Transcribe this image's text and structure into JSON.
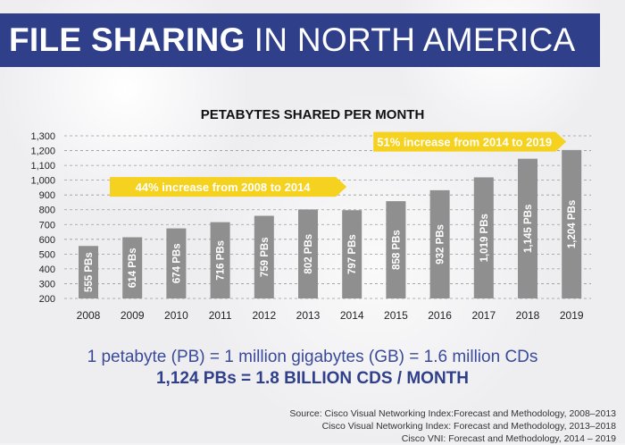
{
  "header": {
    "title_bold": "FILE SHARING",
    "title_light": "IN NORTH AMERICA"
  },
  "colors": {
    "banner": "#2f3f89",
    "bar": "#8f8f8f",
    "callout": "#f5d21f",
    "note_text": "#3a4a9a"
  },
  "chart_data": {
    "type": "bar",
    "title": "PETABYTES SHARED PER MONTH",
    "xlabel": "",
    "ylabel": "",
    "categories": [
      "2008",
      "2009",
      "2010",
      "2011",
      "2012",
      "2013",
      "2014",
      "2015",
      "2016",
      "2017",
      "2018",
      "2019"
    ],
    "values": [
      555,
      614,
      674,
      716,
      759,
      802,
      797,
      858,
      932,
      1019,
      1145,
      1204
    ],
    "data_labels": [
      "555 PBs",
      "614 PBs",
      "674 PBs",
      "716 PBs",
      "759 PBs",
      "802 PBs",
      "797 PBs",
      "858 PBs",
      "932 PBs",
      "1,019 PBs",
      "1,145 PBs",
      "1,204 PBs"
    ],
    "yticks": [
      200,
      300,
      400,
      500,
      600,
      700,
      800,
      900,
      1000,
      1100,
      1200,
      1300
    ],
    "ytick_labels": [
      "200",
      "300",
      "400",
      "500",
      "600",
      "700",
      "800",
      "900",
      "1,000",
      "1,100",
      "1,200",
      "1,300"
    ],
    "ylim": [
      200,
      1300
    ],
    "grid": true,
    "annotations": [
      {
        "text": "44% increase from 2008 to 2014",
        "from": "2008",
        "to": "2014",
        "y": 955
      },
      {
        "text": "51% increase from 2014 to 2019",
        "from": "2014",
        "to": "2019",
        "y": 1260
      }
    ]
  },
  "notes": {
    "line1": "1 petabyte (PB) = 1 million gigabytes (GB) = 1.6 million CDs",
    "line2": "1,124 PBs = 1.8 BILLION CDS / MONTH"
  },
  "sources": [
    "Source: Cisco Visual Networking Index:Forecast and Methodology, 2008–2013",
    "Cisco Visual Networking Index: Forecast and Methodology, 2013–2018",
    "Cisco VNI: Forecast and Methodology, 2014 – 2019"
  ]
}
